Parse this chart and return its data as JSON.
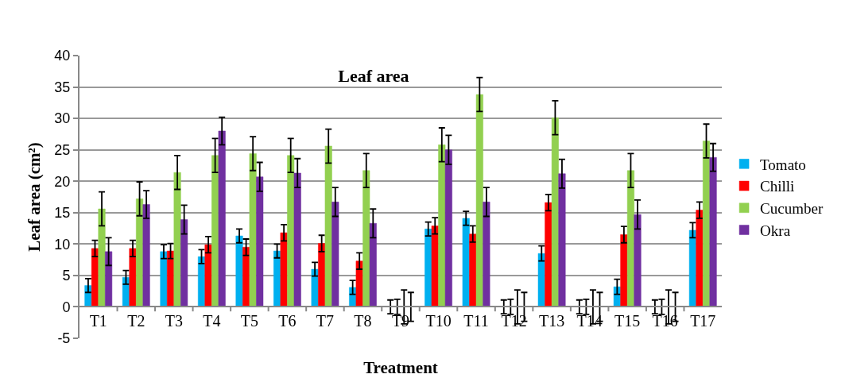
{
  "chart_data": {
    "type": "bar",
    "title": "Leaf area",
    "xlabel": "Treatment",
    "ylabel": "Leaf area (cm²)",
    "categories": [
      "T1",
      "T2",
      "T3",
      "T4",
      "T5",
      "T6",
      "T7",
      "T8",
      "T9",
      "T10",
      "T11",
      "T12",
      "T13",
      "T14",
      "T15",
      "T16",
      "T17"
    ],
    "series": [
      {
        "name": "Tomato",
        "color": "#00b0f0",
        "values": [
          3.4,
          4.7,
          8.8,
          8.0,
          11.3,
          8.9,
          6.0,
          3.1,
          0,
          12.4,
          14.1,
          0,
          8.5,
          0,
          3.2,
          0,
          12.2
        ],
        "errors": [
          1.1,
          1.1,
          1.1,
          1.1,
          1.1,
          1.1,
          1.1,
          1.1,
          1.1,
          1.1,
          1.1,
          1.1,
          1.2,
          1.1,
          1.2,
          1.1,
          1.2
        ]
      },
      {
        "name": "Chilli",
        "color": "#ff0000",
        "values": [
          9.3,
          9.3,
          8.9,
          9.9,
          9.5,
          11.8,
          10.1,
          7.3,
          0,
          12.9,
          11.6,
          0,
          16.6,
          0,
          11.5,
          0,
          15.4
        ],
        "errors": [
          1.3,
          1.3,
          1.2,
          1.3,
          1.3,
          1.3,
          1.3,
          1.3,
          1.2,
          1.3,
          1.3,
          1.2,
          1.3,
          1.2,
          1.3,
          1.2,
          1.3
        ]
      },
      {
        "name": "Cucumber",
        "color": "#92d050",
        "values": [
          15.6,
          17.2,
          21.4,
          24.1,
          24.4,
          24.1,
          25.6,
          21.7,
          0,
          25.8,
          33.8,
          0,
          30.1,
          0,
          21.7,
          0,
          26.4
        ],
        "errors": [
          2.7,
          2.7,
          2.7,
          2.7,
          2.7,
          2.7,
          2.7,
          2.7,
          2.7,
          2.7,
          2.7,
          2.7,
          2.7,
          2.7,
          2.7,
          2.7,
          2.7
        ]
      },
      {
        "name": "Okra",
        "color": "#7030a0",
        "values": [
          8.8,
          16.3,
          13.9,
          28.0,
          20.7,
          21.3,
          16.7,
          13.3,
          0,
          25.0,
          16.7,
          0,
          21.2,
          0,
          14.7,
          0,
          23.8
        ],
        "errors": [
          2.2,
          2.2,
          2.3,
          2.2,
          2.3,
          2.3,
          2.3,
          2.3,
          2.3,
          2.3,
          2.3,
          2.3,
          2.3,
          2.3,
          2.3,
          2.3,
          2.2
        ]
      }
    ],
    "ylim": [
      -5,
      40
    ],
    "yticks": [
      -5,
      0,
      5,
      10,
      15,
      20,
      25,
      30,
      35,
      40
    ],
    "grid": "y",
    "legend": "right"
  }
}
